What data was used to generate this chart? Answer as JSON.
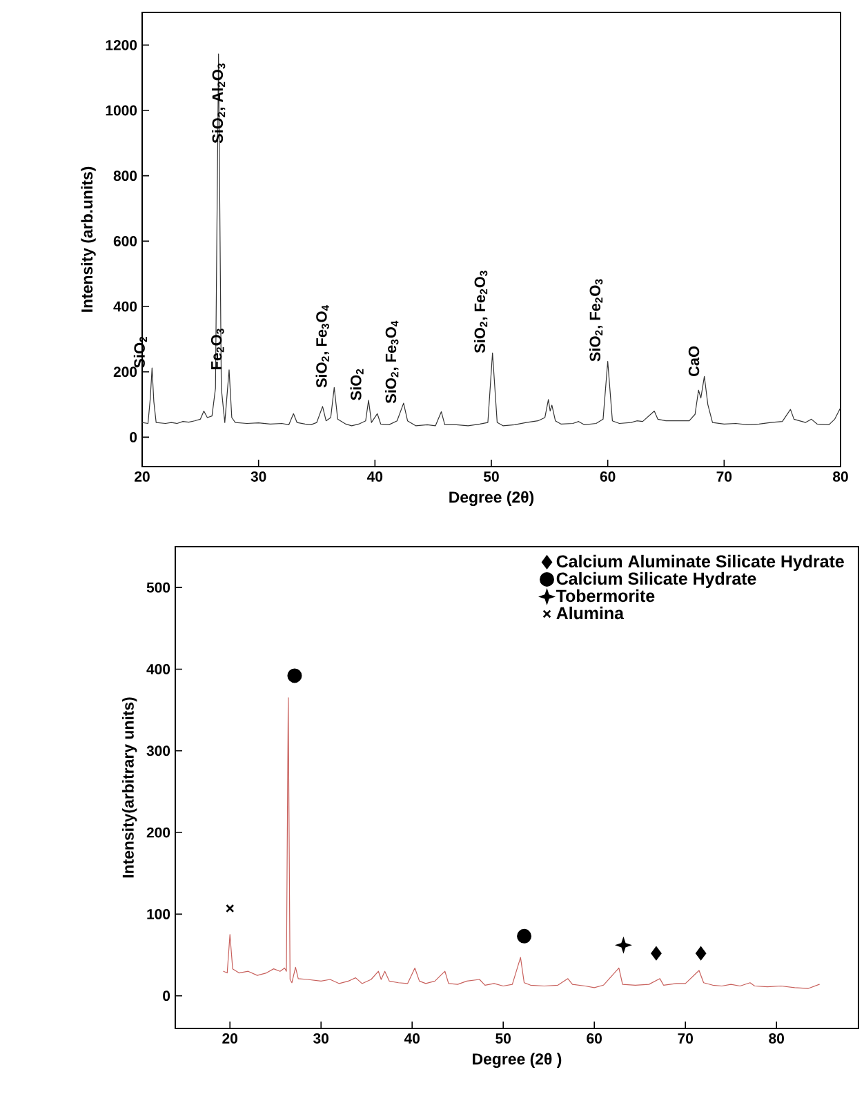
{
  "chart_data": [
    {
      "type": "line",
      "xlabel": "Degree (2θ)",
      "ylabel": "Intensity (arb.units)",
      "xlim": [
        20,
        80
      ],
      "ylim": [
        -90,
        1300
      ],
      "xticks": [
        20,
        30,
        40,
        50,
        60,
        70,
        80
      ],
      "yticks": [
        0,
        200,
        400,
        600,
        800,
        1000,
        1200
      ],
      "series": [
        {
          "color": "#333333",
          "x": [
            20.0,
            20.5,
            20.7,
            20.85,
            21.0,
            21.2,
            22,
            22.5,
            23,
            23.5,
            24,
            24.5,
            25,
            25.3,
            25.6,
            26.0,
            26.3,
            26.56,
            26.8,
            27.1,
            27.47,
            27.7,
            28,
            29,
            30,
            31,
            32,
            32.6,
            33.0,
            33.3,
            34,
            34.5,
            35,
            35.5,
            35.8,
            36.2,
            36.5,
            36.8,
            37.5,
            38,
            38.6,
            39.2,
            39.45,
            39.7,
            40.2,
            40.5,
            41.2,
            41.9,
            42.46,
            42.8,
            43.5,
            44.5,
            45.2,
            45.7,
            46.0,
            47,
            48,
            49,
            49.7,
            50.1,
            50.5,
            51,
            52,
            53,
            54,
            54.6,
            54.9,
            55.05,
            55.2,
            55.5,
            56,
            57,
            57.5,
            58,
            59,
            59.6,
            60.0,
            60.4,
            61,
            62,
            62.5,
            63,
            64.0,
            64.3,
            65,
            66,
            67,
            67.5,
            67.8,
            68.0,
            68.3,
            68.6,
            69,
            70,
            71,
            72,
            73,
            74,
            75,
            75.7,
            76,
            77,
            77.5,
            78,
            79,
            79.5,
            80
          ],
          "values": [
            45,
            42,
            120,
            212,
            110,
            45,
            42,
            45,
            42,
            48,
            46,
            50,
            55,
            80,
            60,
            65,
            150,
            1173,
            150,
            45,
            206,
            60,
            45,
            42,
            44,
            40,
            42,
            38,
            72,
            45,
            40,
            38,
            45,
            94,
            50,
            60,
            152,
            55,
            40,
            35,
            40,
            50,
            113,
            45,
            72,
            40,
            38,
            50,
            104,
            50,
            35,
            38,
            35,
            78,
            38,
            38,
            35,
            40,
            45,
            258,
            45,
            35,
            38,
            45,
            50,
            60,
            115,
            80,
            98,
            50,
            40,
            42,
            48,
            38,
            42,
            55,
            232,
            50,
            42,
            45,
            50,
            48,
            80,
            55,
            50,
            50,
            50,
            70,
            144,
            120,
            186,
            100,
            45,
            40,
            42,
            38,
            40,
            45,
            48,
            85,
            55,
            45,
            55,
            40,
            38,
            55,
            90
          ]
        }
      ],
      "annotations": [
        {
          "text": "SiO$_{2}$",
          "x": 20.85,
          "y": 212
        },
        {
          "text": "SiO$_{2}$, Al$_{2}$O$_{3}$",
          "x": 26.56,
          "y": 1173
        },
        {
          "text": "Fe$_{2}$O$_{3}$",
          "x": 27.47,
          "y": 206
        },
        {
          "text": "SiO$_{2}$, Fe$_{3}$O$_{4}$",
          "x": 36.5,
          "y": 152
        },
        {
          "text": "SiO$_{2}$",
          "x": 39.45,
          "y": 113
        },
        {
          "text": "SiO$_{2}$, Fe$_{3}$O$_{4}$",
          "x": 42.46,
          "y": 104
        },
        {
          "text": "SiO$_{2}$, Fe$_{2}$O$_{3}$",
          "x": 50.1,
          "y": 258
        },
        {
          "text": "SiO$_{2}$, Fe$_{2}$O$_{3}$",
          "x": 60.0,
          "y": 232
        },
        {
          "text": "CaO",
          "x": 68.3,
          "y": 186
        }
      ]
    },
    {
      "type": "line",
      "xlabel": "Degree (2θ )",
      "ylabel": "Intensity(arbitrary units)",
      "xlim": [
        14,
        89
      ],
      "ylim": [
        -40,
        550
      ],
      "xticks": [
        20,
        30,
        40,
        50,
        60,
        70,
        80
      ],
      "yticks": [
        0,
        100,
        200,
        300,
        400,
        500
      ],
      "legend": "top right",
      "series": [
        {
          "color": "#c8605c",
          "x": [
            19.3,
            19.7,
            20.0,
            20.3,
            21,
            22,
            23,
            24,
            24.8,
            25.5,
            26.0,
            26.2,
            26.4,
            26.6,
            26.8,
            27.2,
            27.5,
            28.5,
            30,
            31,
            32,
            33,
            33.8,
            34.5,
            35.5,
            36.3,
            36.6,
            37.0,
            37.5,
            38.5,
            39.5,
            40.3,
            40.8,
            41.5,
            42.5,
            43.6,
            44,
            45,
            46,
            47.4,
            48,
            49,
            50,
            51,
            51.9,
            52.3,
            53,
            54.5,
            56,
            57.1,
            57.6,
            59,
            60,
            61,
            62.7,
            63.1,
            64.5,
            66,
            67.2,
            67.6,
            69,
            70,
            71.5,
            72,
            73,
            74,
            75,
            76,
            77.1,
            77.6,
            79,
            80.5,
            82,
            83.5,
            84.7
          ],
          "values": [
            30,
            28,
            75,
            33,
            28,
            30,
            25,
            28,
            33,
            30,
            34,
            30,
            365,
            20,
            16,
            35,
            21,
            20,
            18,
            20,
            15,
            18,
            22,
            15,
            20,
            30,
            20,
            30,
            18,
            16,
            15,
            34,
            18,
            15,
            18,
            30,
            15,
            14,
            18,
            20,
            13,
            15,
            12,
            14,
            47,
            16,
            13,
            12,
            13,
            21,
            14,
            12,
            10,
            13,
            34,
            14,
            13,
            14,
            21,
            13,
            15,
            15,
            31,
            16,
            13,
            12,
            14,
            12,
            16,
            12,
            11,
            12,
            10,
            9,
            14
          ]
        },
        {
          "type": "scatter",
          "name": "Calcium Aluminate Silicate Hydrate",
          "marker": "diamond",
          "color": "#000000",
          "x": [
            66.8,
            71.7
          ],
          "values": [
            52,
            52
          ]
        },
        {
          "type": "scatter",
          "name": "Calcium Silicate Hydrate",
          "marker": "circle",
          "color": "#000000",
          "x": [
            27.1,
            52.3
          ],
          "values": [
            392,
            73
          ]
        },
        {
          "type": "scatter",
          "name": "Tobermorite",
          "marker": "star",
          "color": "#000000",
          "x": [
            63.2
          ],
          "values": [
            62
          ]
        },
        {
          "type": "scatter",
          "name": "Alumina",
          "marker": "cross",
          "color": "#000000",
          "x": [
            20.0
          ],
          "values": [
            107
          ]
        }
      ]
    }
  ]
}
